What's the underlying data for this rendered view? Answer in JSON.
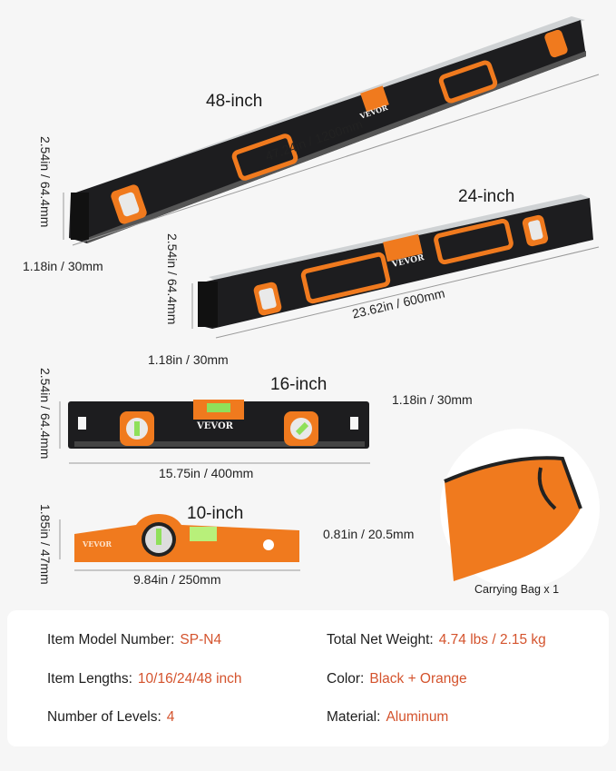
{
  "levels": [
    {
      "title": "48-inch",
      "length": "47.24in / 1200mm",
      "height": "2.54in / 64.4mm",
      "depth": "1.18in / 30mm",
      "brand": "VEVOR"
    },
    {
      "title": "24-inch",
      "length": "23.62in / 600mm",
      "height": "2.54in / 64.4mm",
      "depth": "1.18in / 30mm",
      "brand": "VEVOR"
    },
    {
      "title": "16-inch",
      "length": "15.75in / 400mm",
      "height": "2.54in / 64.4mm",
      "depth": "1.18in / 30mm",
      "brand": "VEVOR"
    },
    {
      "title": "10-inch",
      "length": "9.84in / 250mm",
      "height": "1.85in / 47mm",
      "depth": "0.81in / 20.5mm",
      "brand": "VEVOR"
    }
  ],
  "bag": {
    "caption": "Carrying Bag x 1"
  },
  "specs": [
    {
      "label": "Item Model Number:",
      "value": "SP-N4"
    },
    {
      "label": "Total Net Weight:",
      "value": "4.74 lbs / 2.15 kg"
    },
    {
      "label": "Item Lengths:",
      "value": "10/16/24/48 inch"
    },
    {
      "label": "Color:",
      "value": "Black + Orange"
    },
    {
      "label": "Number of Levels:",
      "value": "4"
    },
    {
      "label": "Material:",
      "value": "Aluminum"
    }
  ],
  "colors": {
    "accent": "#d4532d",
    "orange": "#f07a1e",
    "body": "#1c1c1e",
    "bubble": "#8fe05a"
  }
}
